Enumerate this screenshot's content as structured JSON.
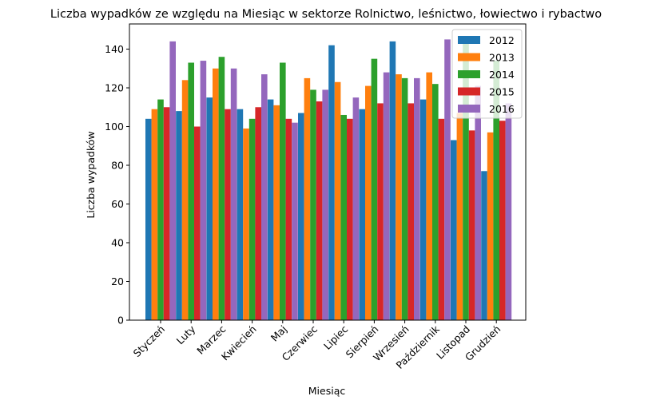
{
  "chart_data": {
    "type": "bar",
    "title": "Liczba wypadków ze względu na Miesiąc w sektorze Rolnictwo, leśnictwo, łowiectwo i rybactwo",
    "xlabel": "Miesiąc",
    "ylabel": "Liczba wypadków",
    "categories": [
      "Styczeń",
      "Luty",
      "Marzec",
      "Kwiecień",
      "Maj",
      "Czerwiec",
      "Lipiec",
      "Sierpień",
      "Wrzesień",
      "Październik",
      "Listopad",
      "Grudzień"
    ],
    "ylim": [
      0,
      153
    ],
    "yticks": [
      0,
      20,
      40,
      60,
      80,
      100,
      120,
      140
    ],
    "grid": false,
    "legend_position": "top-right",
    "series": [
      {
        "name": "2012",
        "color": "#1f77b4",
        "values": [
          104,
          108,
          115,
          109,
          114,
          107,
          142,
          109,
          144,
          114,
          93,
          77
        ]
      },
      {
        "name": "2013",
        "color": "#ff7f0e",
        "values": [
          109,
          124,
          130,
          99,
          111,
          125,
          123,
          121,
          127,
          128,
          107,
          97
        ]
      },
      {
        "name": "2014",
        "color": "#2ca02c",
        "values": [
          114,
          133,
          136,
          104,
          133,
          119,
          106,
          135,
          125,
          122,
          144,
          134
        ]
      },
      {
        "name": "2015",
        "color": "#d62728",
        "values": [
          110,
          100,
          109,
          110,
          104,
          113,
          104,
          112,
          112,
          104,
          98,
          103
        ]
      },
      {
        "name": "2016",
        "color": "#9467bd",
        "values": [
          144,
          134,
          130,
          127,
          102,
          119,
          115,
          128,
          125,
          145,
          121,
          112
        ]
      }
    ]
  }
}
